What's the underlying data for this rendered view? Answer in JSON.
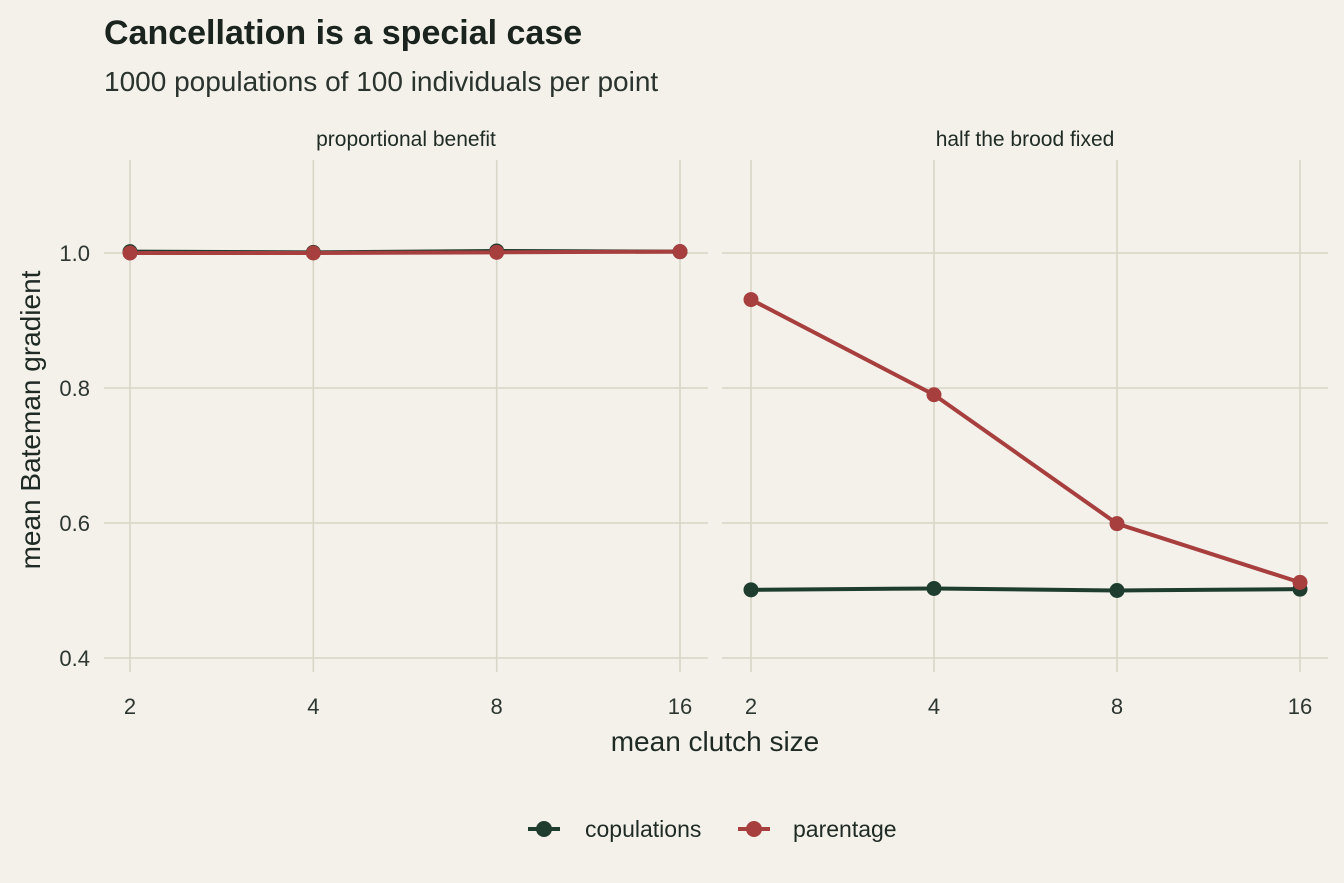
{
  "chart_data": {
    "type": "line",
    "title": "Cancellation is a special case",
    "subtitle": "1000 populations of 100 individuals per point",
    "xlabel": "mean clutch size",
    "ylabel": "mean Bateman gradient",
    "x_scale": "log2",
    "x": [
      2,
      4,
      8,
      16
    ],
    "x_tick_labels": [
      "2",
      "4",
      "8",
      "16"
    ],
    "ylim": [
      0.38,
      1.13
    ],
    "y_ticks": [
      0.4,
      0.6,
      0.8,
      1.0
    ],
    "y_tick_labels": [
      "0.4",
      "0.6",
      "0.8",
      "1.0"
    ],
    "grid": true,
    "legend_position": "bottom",
    "colors": {
      "copulations": "#1f3d2e",
      "parentage": "#a83f3f"
    },
    "panels": [
      {
        "label": "proportional benefit",
        "series": [
          {
            "name": "copulations",
            "values": [
              1.002,
              1.001,
              1.003,
              1.002
            ]
          },
          {
            "name": "parentage",
            "values": [
              1.0,
              1.0,
              1.001,
              1.002
            ]
          }
        ]
      },
      {
        "label": "half the brood fixed",
        "series": [
          {
            "name": "copulations",
            "values": [
              0.501,
              0.503,
              0.5,
              0.502
            ]
          },
          {
            "name": "parentage",
            "values": [
              0.931,
              0.79,
              0.599,
              0.512
            ]
          }
        ]
      }
    ],
    "legend": [
      "copulations",
      "parentage"
    ]
  }
}
